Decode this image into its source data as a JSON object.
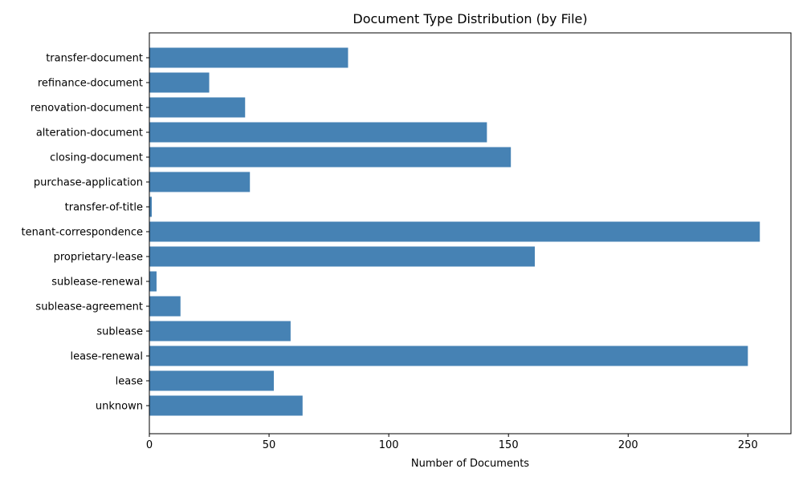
{
  "chart_data": {
    "type": "bar",
    "orientation": "horizontal",
    "title": "Document Type Distribution (by File)",
    "xlabel": "Number of Documents",
    "ylabel": "",
    "xlim": [
      0,
      268
    ],
    "xticks": [
      0,
      50,
      100,
      150,
      200,
      250
    ],
    "grid": false,
    "bar_color": "#4682b4",
    "categories": [
      "transfer-document",
      "refinance-document",
      "renovation-document",
      "alteration-document",
      "closing-document",
      "purchase-application",
      "transfer-of-title",
      "tenant-correspondence",
      "proprietary-lease",
      "sublease-renewal",
      "sublease-agreement",
      "sublease",
      "lease-renewal",
      "lease",
      "unknown"
    ],
    "values": [
      83,
      25,
      40,
      141,
      151,
      42,
      1,
      255,
      161,
      3,
      13,
      59,
      250,
      52,
      64
    ]
  }
}
